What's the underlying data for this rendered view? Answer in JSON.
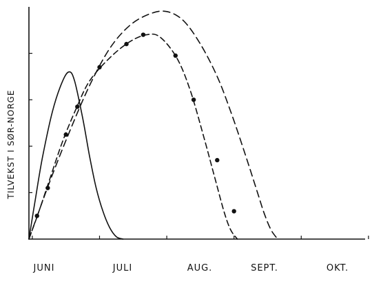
{
  "chart_data": {
    "type": "line",
    "title": "",
    "xlabel": "",
    "ylabel": "TILVEKST I SØR-NORGE",
    "categories": [
      "JUNI",
      "JULI",
      "AUG.",
      "SEPT.",
      "OKT."
    ],
    "xlim": [
      0,
      5
    ],
    "ylim": [
      0,
      100
    ],
    "grid": false,
    "legend": "none",
    "colors": {
      "ink": "#111111",
      "background": "#ffffff"
    },
    "series": [
      {
        "style": "solid",
        "x": [
          0.0,
          0.1,
          0.2,
          0.35,
          0.5,
          0.6,
          0.68,
          0.8,
          0.9,
          1.0,
          1.1,
          1.2,
          1.3,
          1.4
        ],
        "y": [
          0,
          18,
          35,
          55,
          68,
          72,
          68,
          52,
          36,
          22,
          12,
          5,
          1,
          0
        ]
      },
      {
        "style": "dash-dot",
        "x": [
          0.0,
          0.15,
          0.3,
          0.5,
          0.7,
          0.9,
          1.2,
          1.5,
          1.75,
          1.95,
          2.2,
          2.4,
          2.6,
          2.75,
          2.9,
          3.0,
          3.1
        ],
        "y": [
          0,
          12,
          25,
          42,
          56,
          68,
          78,
          85,
          88,
          87,
          78,
          64,
          44,
          28,
          12,
          4,
          0
        ]
      },
      {
        "style": "dashed",
        "x": [
          0.0,
          0.3,
          0.6,
          0.9,
          1.2,
          1.5,
          1.8,
          2.05,
          2.3,
          2.55,
          2.8,
          3.0,
          3.2,
          3.4,
          3.5,
          3.6,
          3.7
        ],
        "y": [
          0,
          24,
          46,
          66,
          82,
          92,
          97,
          98,
          94,
          84,
          70,
          55,
          38,
          20,
          11,
          4,
          0
        ]
      }
    ],
    "markers": {
      "on_series": 1,
      "points": [
        {
          "x": 0.12,
          "y": 10
        },
        {
          "x": 0.28,
          "y": 22
        },
        {
          "x": 0.55,
          "y": 45
        },
        {
          "x": 0.72,
          "y": 57
        },
        {
          "x": 1.05,
          "y": 74
        },
        {
          "x": 1.45,
          "y": 84
        },
        {
          "x": 1.7,
          "y": 88
        },
        {
          "x": 2.18,
          "y": 79
        },
        {
          "x": 2.45,
          "y": 60
        },
        {
          "x": 2.8,
          "y": 34
        },
        {
          "x": 3.05,
          "y": 12
        }
      ]
    }
  }
}
